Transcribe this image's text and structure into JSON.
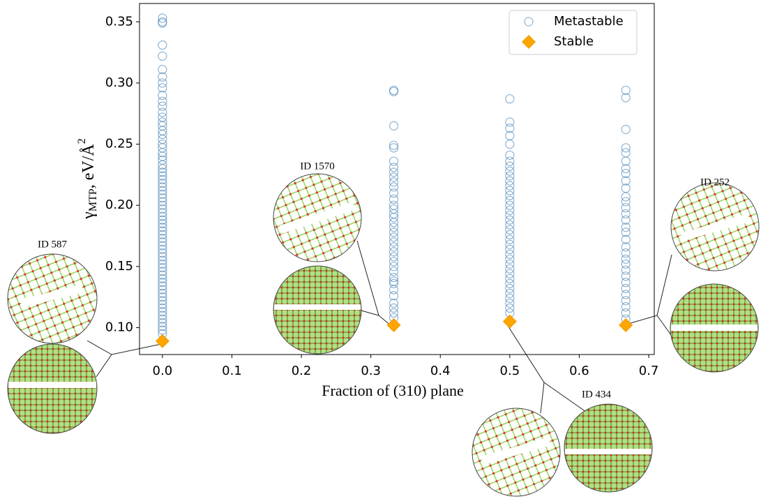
{
  "chart_data": {
    "type": "scatter",
    "x_label": "Fraction of (310) plane",
    "y_label": {
      "symbol": "γ",
      "subscript": "MTP",
      "unit": ", eV/Å",
      "superscript": "2"
    },
    "xlim": [
      -0.033,
      0.708
    ],
    "ylim": [
      0.078,
      0.365
    ],
    "xticks": [
      {
        "value": 0,
        "label": "0.0"
      },
      0.1,
      0.2,
      0.3,
      0.4,
      0.5,
      0.6,
      0.7
    ],
    "yticks": [
      {
        "value": 0.1,
        "label": "0.10"
      },
      0.15,
      {
        "value": 0.2,
        "label": "0.20"
      },
      0.25,
      {
        "value": 0.3,
        "label": "0.30"
      },
      0.35
    ],
    "grid": false,
    "legend": "upper right",
    "series": [
      {
        "name": "Metastable",
        "color": "#4682b4",
        "marker": "circle",
        "groups": [
          {
            "x": 0,
            "y": [
              0.353,
              0.35,
              0.349,
              0.331,
              0.322,
              0.311,
              0.305,
              0.3,
              0.296,
              0.29,
              0.285,
              0.281,
              0.276,
              0.272,
              0.268,
              0.265,
              0.261,
              0.258,
              0.254,
              0.25,
              0.247,
              0.243,
              0.24,
              0.237,
              0.233,
              0.23,
              0.227,
              0.224,
              0.221,
              0.218,
              0.215,
              0.212,
              0.209,
              0.206,
              0.203,
              0.2,
              0.197,
              0.194,
              0.191,
              0.188,
              0.185,
              0.182,
              0.179,
              0.176,
              0.173,
              0.17,
              0.167,
              0.164,
              0.161,
              0.158,
              0.155,
              0.152,
              0.149,
              0.146,
              0.143,
              0.14,
              0.137,
              0.134,
              0.131,
              0.128,
              0.125,
              0.122,
              0.119,
              0.116,
              0.113,
              0.11,
              0.107,
              0.104,
              0.101,
              0.098,
              0.095
            ]
          },
          {
            "x": 0.333,
            "y": [
              0.294,
              0.293,
              0.265,
              0.249,
              0.247,
              0.236,
              0.231,
              0.227,
              0.223,
              0.219,
              0.215,
              0.21,
              0.205,
              0.2,
              0.197,
              0.193,
              0.19,
              0.186,
              0.182,
              0.178,
              0.174,
              0.17,
              0.166,
              0.162,
              0.158,
              0.154,
              0.15,
              0.146,
              0.141,
              0.138,
              0.136,
              0.131,
              0.126,
              0.12,
              0.116,
              0.112,
              0.108
            ]
          },
          {
            "x": 0.5,
            "y": [
              0.287,
              0.268,
              0.263,
              0.257,
              0.25,
              0.241,
              0.236,
              0.232,
              0.228,
              0.224,
              0.22,
              0.216,
              0.212,
              0.208,
              0.204,
              0.2,
              0.196,
              0.192,
              0.188,
              0.184,
              0.18,
              0.176,
              0.172,
              0.168,
              0.164,
              0.16,
              0.156,
              0.152,
              0.148,
              0.144,
              0.14,
              0.136,
              0.132,
              0.128,
              0.124,
              0.12,
              0.116,
              0.112
            ]
          },
          {
            "x": 0.667,
            "y": [
              0.294,
              0.288,
              0.262,
              0.247,
              0.243,
              0.236,
              0.23,
              0.226,
              0.22,
              0.214,
              0.207,
              0.203,
              0.198,
              0.193,
              0.188,
              0.182,
              0.178,
              0.172,
              0.166,
              0.161,
              0.156,
              0.152,
              0.147,
              0.142,
              0.137,
              0.132,
              0.127,
              0.122,
              0.117,
              0.112,
              0.107
            ]
          }
        ]
      },
      {
        "name": "Stable",
        "color": "#ffa500",
        "marker": "diamond",
        "x": [
          0,
          0.333,
          0.5,
          0.667
        ],
        "y": [
          0.089,
          0.102,
          0.105,
          0.102
        ]
      }
    ],
    "annotations": [
      {
        "text": "ID 587"
      },
      {
        "text": "ID 1570"
      },
      {
        "text": "ID 434"
      },
      {
        "text": "ID 252"
      }
    ]
  }
}
